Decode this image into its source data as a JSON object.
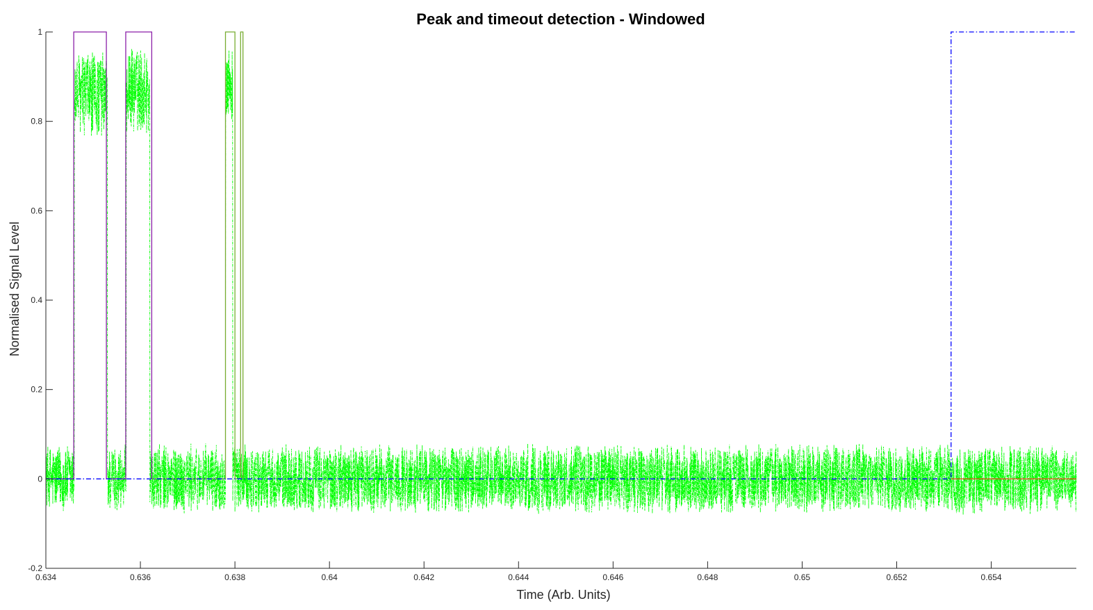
{
  "chart_data": {
    "type": "line",
    "title": "Peak and timeout detection - Windowed",
    "xlabel": "Time (Arb. Units)",
    "ylabel": "Normalised Signal Level",
    "xlim": [
      0.634,
      0.6558
    ],
    "ylim": [
      -0.2,
      1.0
    ],
    "grid": false,
    "legend": "none",
    "x_ticks": [
      0.634,
      0.636,
      0.638,
      0.64,
      0.642,
      0.644,
      0.646,
      0.648,
      0.65,
      0.652,
      0.654
    ],
    "x_tick_labels": [
      "0.634",
      "0.636",
      "0.638",
      "0.64",
      "0.642",
      "0.644",
      "0.646",
      "0.648",
      "0.65",
      "0.652",
      "0.654"
    ],
    "y_ticks": [
      -0.2,
      0,
      0.2,
      0.4,
      0.6,
      0.8,
      1
    ],
    "y_tick_labels": [
      "-0.2",
      "0",
      "0.2",
      "0.4",
      "0.6",
      "0.8",
      "1"
    ],
    "series": [
      {
        "style": "green noisy dash-dot signal",
        "color": "#00ff00",
        "baseline_noise_amplitude": 0.07,
        "peak_segments": [
          {
            "x_start": 0.6346,
            "x_end": 0.6353,
            "level": 0.86
          },
          {
            "x_start": 0.6357,
            "x_end": 0.6362,
            "level": 0.87
          },
          {
            "x_start": 0.6378,
            "x_end": 0.63795,
            "level": 0.88
          }
        ]
      },
      {
        "style": "purple peak windows",
        "color": "#8b1fa8",
        "x": [
          0.634,
          0.63459,
          0.63459,
          0.63528,
          0.63528,
          0.63569,
          0.63569,
          0.63624,
          0.63624
        ],
        "y": [
          0,
          0,
          1,
          1,
          0,
          0,
          1,
          1,
          0
        ]
      },
      {
        "style": "olive peak windows",
        "color": "#77ac30",
        "x": [
          0.63624,
          0.6378,
          0.6378,
          0.638,
          0.638,
          0.63812,
          0.63812,
          0.63817,
          0.63817
        ],
        "y": [
          0,
          0,
          1,
          1,
          0,
          0,
          1,
          1,
          0
        ]
      },
      {
        "style": "blue dash-dot timeout",
        "color": "#0000ff",
        "x": [
          0.634,
          0.65315,
          0.65315,
          0.6558
        ],
        "y": [
          0,
          0,
          1,
          1
        ]
      },
      {
        "style": "orange baseline",
        "color": "#d95319",
        "x": [
          0.65315,
          0.6558
        ],
        "y": [
          0,
          0
        ]
      }
    ]
  }
}
